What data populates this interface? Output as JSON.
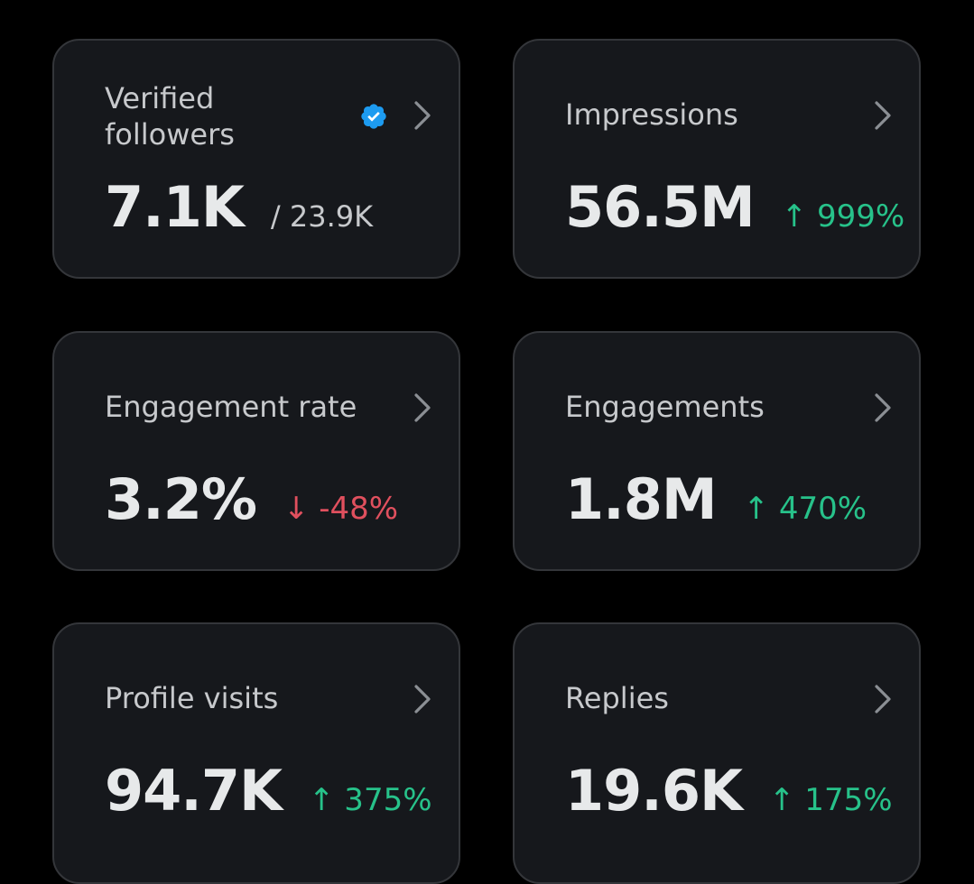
{
  "colors": {
    "background": "#000000",
    "card": "#16181c",
    "card_border": "#34363a",
    "positive": "#27c28a",
    "negative": "#e0505e",
    "verified_badge": "#1d9bf0"
  },
  "cards": [
    {
      "label": "Verified followers",
      "value": "7.1K",
      "secondary": "/ 23.9K",
      "icon": "verified-badge-icon"
    },
    {
      "label": "Impressions",
      "value": "56.5M",
      "delta": "↑ 999%",
      "trend": "up"
    },
    {
      "label": "Engagement rate",
      "value": "3.2%",
      "delta": "↓ -48%",
      "trend": "down"
    },
    {
      "label": "Engagements",
      "value": "1.8M",
      "delta": "↑ 470%",
      "trend": "up"
    },
    {
      "label": "Profile visits",
      "value": "94.7K",
      "delta": "↑ 375%",
      "trend": "up"
    },
    {
      "label": "Replies",
      "value": "19.6K",
      "delta": "↑ 175%",
      "trend": "up"
    }
  ]
}
